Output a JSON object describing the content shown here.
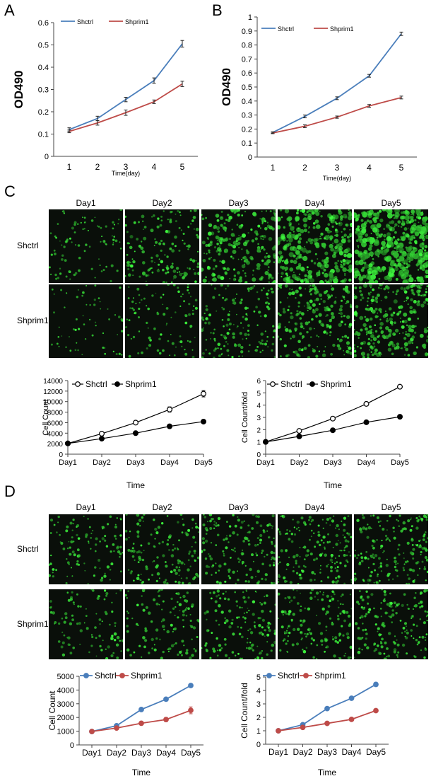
{
  "panel_labels": {
    "A": "A",
    "B": "B",
    "C": "C",
    "D": "D"
  },
  "micrograph_sets": {
    "C": {
      "days": [
        "Day1",
        "Day2",
        "Day3",
        "Day4",
        "Day5"
      ],
      "rows": [
        "Shctrl",
        "Shprim1"
      ]
    },
    "D": {
      "days": [
        "Day1",
        "Day2",
        "Day3",
        "Day4",
        "Day5"
      ],
      "rows": [
        "Shctrl",
        "Shprim1"
      ]
    }
  },
  "colors": {
    "blue": "#4a7ebb",
    "red": "#be4b48",
    "black": "#000000",
    "fluorescence": "#3ddc3d"
  },
  "chart_data": [
    {
      "id": "A",
      "type": "line",
      "x": [
        1,
        2,
        3,
        4,
        5
      ],
      "xlabel": "Time(day)",
      "ylabel": "OD490",
      "ylim": [
        0,
        0.6
      ],
      "yticks": [
        "0",
        "0.1",
        "0.2",
        "0.3",
        "0.4",
        "0.5",
        "0.6"
      ],
      "legend": "top-left",
      "series": [
        {
          "name": "Shctrl",
          "values": [
            0.12,
            0.17,
            0.255,
            0.34,
            0.505
          ],
          "errors": [
            0.008,
            0.01,
            0.01,
            0.012,
            0.015
          ]
        },
        {
          "name": "Shprim1",
          "values": [
            0.112,
            0.15,
            0.196,
            0.245,
            0.325
          ],
          "errors": [
            0.006,
            0.01,
            0.012,
            0.008,
            0.012
          ]
        }
      ]
    },
    {
      "id": "B",
      "type": "line",
      "x": [
        1,
        2,
        3,
        4,
        5
      ],
      "xlabel": "Time(day)",
      "ylabel": "OD490",
      "ylim": [
        0,
        1
      ],
      "yticks": [
        "0",
        "0.1",
        "0.2",
        "0.3",
        "0.4",
        "0.5",
        "0.6",
        "0.7",
        "0.8",
        "0.9",
        "1"
      ],
      "legend": "top-left",
      "series": [
        {
          "name": "Shctrl",
          "values": [
            0.175,
            0.29,
            0.42,
            0.58,
            0.88
          ],
          "errors": [
            0.005,
            0.01,
            0.01,
            0.01,
            0.012
          ]
        },
        {
          "name": "Shprim1",
          "values": [
            0.172,
            0.22,
            0.285,
            0.365,
            0.425
          ],
          "errors": [
            0.005,
            0.01,
            0.008,
            0.01,
            0.01
          ]
        }
      ]
    },
    {
      "id": "C-count",
      "type": "line",
      "categories": [
        "Day1",
        "Day2",
        "Day3",
        "Day4",
        "Day5"
      ],
      "xlabel": "Time",
      "ylabel": "Cell Count",
      "ylim": [
        0,
        14000
      ],
      "yticks": [
        "0",
        "2000",
        "4000",
        "6000",
        "8000",
        "10000",
        "12000",
        "14000"
      ],
      "legend": "top-left",
      "series": [
        {
          "name": "Shctrl",
          "values": [
            2050,
            3900,
            6000,
            8500,
            11500
          ],
          "errors": [
            0,
            150,
            200,
            500,
            600
          ]
        },
        {
          "name": "Shprim1",
          "values": [
            2050,
            2950,
            4000,
            5300,
            6200
          ],
          "errors": [
            0,
            100,
            100,
            100,
            100
          ]
        }
      ]
    },
    {
      "id": "C-fold",
      "type": "line",
      "categories": [
        "Day1",
        "Day2",
        "Day3",
        "Day4",
        "Day5"
      ],
      "xlabel": "Time",
      "ylabel": "Cell Count/fold",
      "ylim": [
        0,
        6
      ],
      "yticks": [
        "0",
        "1",
        "2",
        "3",
        "4",
        "5",
        "6"
      ],
      "legend": "top-left",
      "series": [
        {
          "name": "Shctrl",
          "values": [
            1,
            1.9,
            2.9,
            4.1,
            5.5
          ],
          "errors": [
            0,
            0,
            0,
            0,
            0
          ]
        },
        {
          "name": "Shprim1",
          "values": [
            1,
            1.45,
            1.95,
            2.6,
            3.05
          ],
          "errors": [
            0,
            0,
            0,
            0,
            0
          ]
        }
      ]
    },
    {
      "id": "D-count",
      "type": "line",
      "categories": [
        "Day1",
        "Day2",
        "Day3",
        "Day4",
        "Day5"
      ],
      "xlabel": "Time",
      "ylabel": "Cell Count",
      "ylim": [
        0,
        5000
      ],
      "yticks": [
        "0",
        "1000",
        "2000",
        "3000",
        "4000",
        "5000"
      ],
      "legend": "top-left",
      "series": [
        {
          "name": "Shctrl",
          "values": [
            980,
            1400,
            2580,
            3330,
            4330
          ],
          "errors": [
            60,
            60,
            60,
            80,
            60
          ]
        },
        {
          "name": "Shprim1",
          "values": [
            980,
            1230,
            1580,
            1850,
            2520
          ],
          "errors": [
            60,
            80,
            120,
            150,
            250
          ]
        }
      ]
    },
    {
      "id": "D-fold",
      "type": "line",
      "categories": [
        "Day1",
        "Day2",
        "Day3",
        "Day4",
        "Day5"
      ],
      "xlabel": "Time",
      "ylabel": "Cell Count/fold",
      "ylim": [
        0,
        5
      ],
      "yticks": [
        "0",
        "1",
        "2",
        "3",
        "4",
        "5"
      ],
      "legend": "top-left",
      "series": [
        {
          "name": "Shctrl",
          "values": [
            1,
            1.45,
            2.65,
            3.42,
            4.45
          ],
          "errors": [
            0.05,
            0.1,
            0.12,
            0.1,
            0.15
          ]
        },
        {
          "name": "Shprim1",
          "values": [
            1,
            1.25,
            1.55,
            1.85,
            2.5
          ],
          "errors": [
            0.05,
            0.05,
            0.08,
            0.05,
            0.1
          ]
        }
      ]
    }
  ]
}
